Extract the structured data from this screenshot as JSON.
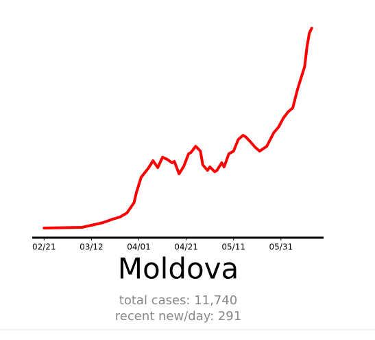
{
  "chart_data": {
    "type": "line",
    "title": "Moldova",
    "annotations": [
      "total cases: 11,740",
      "recent new/day: 291"
    ],
    "x": [
      0,
      16,
      20,
      25,
      29,
      32,
      35,
      38,
      39,
      41,
      44,
      46,
      48,
      50,
      52,
      54,
      55,
      57,
      59,
      61,
      62,
      64,
      66,
      67,
      69,
      70,
      72,
      73,
      75,
      76,
      78,
      80,
      82,
      84,
      85,
      87,
      89,
      91,
      94,
      97,
      99,
      101,
      103,
      105,
      107,
      109,
      110,
      111,
      112,
      113
    ],
    "series": [
      {
        "name": "Moldova",
        "color": "#ff0000",
        "values": [
          0,
          1,
          4,
          8,
          13,
          16,
          22,
          37,
          52,
          74,
          87,
          98,
          88,
          103,
          100,
          95,
          97,
          79,
          90,
          108,
          110,
          119,
          112,
          92,
          84,
          89,
          82,
          84,
          95,
          89,
          108,
          112,
          129,
          135,
          133,
          126,
          118,
          112,
          119,
          139,
          147,
          160,
          169,
          175,
          202,
          224,
          235,
          264,
          284,
          291
        ]
      }
    ],
    "xlim": [
      -5,
      118
    ],
    "ylim": [
      -14,
      300
    ],
    "xticks": [
      {
        "value": 0,
        "label": "02/21"
      },
      {
        "value": 20,
        "label": "03/12"
      },
      {
        "value": 40,
        "label": "04/01"
      },
      {
        "value": 60,
        "label": "04/21"
      },
      {
        "value": 80,
        "label": "05/11"
      },
      {
        "value": 100,
        "label": "05/31"
      }
    ]
  }
}
